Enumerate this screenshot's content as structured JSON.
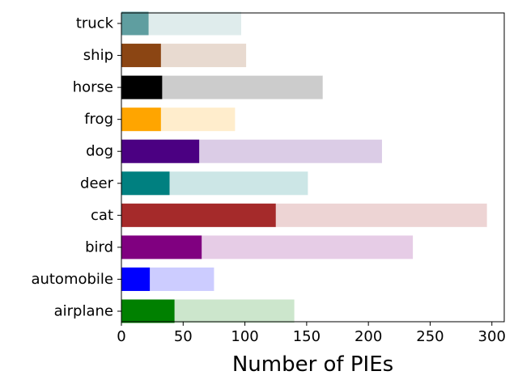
{
  "chart_data": {
    "type": "bar",
    "orientation": "horizontal",
    "stacked": "overlay",
    "title": "",
    "xlabel": "Number of PIEs",
    "ylabel": "",
    "xlim": [
      0,
      310
    ],
    "xticks": [
      0,
      50,
      100,
      150,
      200,
      250,
      300
    ],
    "grid": false,
    "categories": [
      "airplane",
      "automobile",
      "bird",
      "cat",
      "deer",
      "dog",
      "frog",
      "horse",
      "ship",
      "truck"
    ],
    "series": [
      {
        "values": [
          140,
          75,
          236,
          296,
          151,
          211,
          92,
          163,
          101,
          97
        ],
        "opacity": 0.2
      },
      {
        "values": [
          43,
          23,
          65,
          125,
          39,
          63,
          32,
          33,
          32,
          22
        ],
        "opacity": 1.0
      }
    ],
    "colors": [
      "#008000",
      "#0000ff",
      "#800080",
      "#a52a2a",
      "#008080",
      "#4b0082",
      "#ffa500",
      "#000000",
      "#8b4513",
      "#5f9ea0"
    ]
  }
}
